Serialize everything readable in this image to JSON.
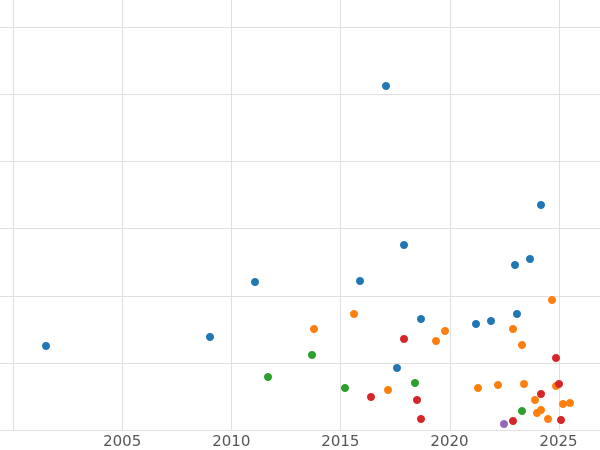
{
  "chart_data": {
    "type": "scatter",
    "title": "",
    "xlabel": "",
    "ylabel": "",
    "xlim": [
      1999.4,
      2026.9
    ],
    "ylim": [
      0,
      6.4
    ],
    "grid": true,
    "background_color": "#ffffff",
    "gridline_color": "#e0e0e0",
    "tick_label_color": "#555555",
    "legend": "none",
    "marker_size_px": 8,
    "x_gridlines": [
      2000,
      2005,
      2010,
      2015,
      2020,
      2025
    ],
    "y_gridlines": [
      0,
      1,
      2,
      3,
      4,
      5,
      6
    ],
    "x_ticks": [
      {
        "year": 2005,
        "label": "2005"
      },
      {
        "year": 2010,
        "label": "2010"
      },
      {
        "year": 2015,
        "label": "2015"
      },
      {
        "year": 2020,
        "label": "2020"
      },
      {
        "year": 2025,
        "label": "2025"
      }
    ],
    "series": [
      {
        "name": "series-blue",
        "color": "#1f77b4",
        "points": [
          [
            2001.5,
            1.25
          ],
          [
            2009.0,
            1.38
          ],
          [
            2011.1,
            2.2
          ],
          [
            2015.9,
            2.22
          ],
          [
            2017.1,
            5.12
          ],
          [
            2017.6,
            0.92
          ],
          [
            2017.9,
            2.75
          ],
          [
            2018.7,
            1.66
          ],
          [
            2021.2,
            1.58
          ],
          [
            2021.9,
            1.62
          ],
          [
            2023.0,
            2.45
          ],
          [
            2023.1,
            1.73
          ],
          [
            2023.7,
            2.55
          ],
          [
            2024.2,
            3.35
          ]
        ]
      },
      {
        "name": "series-orange",
        "color": "#ff7f0e",
        "points": [
          [
            2013.8,
            1.51
          ],
          [
            2015.6,
            1.73
          ],
          [
            2017.2,
            0.59
          ],
          [
            2019.4,
            1.33
          ],
          [
            2019.8,
            1.47
          ],
          [
            2021.3,
            0.62
          ],
          [
            2022.2,
            0.67
          ],
          [
            2022.9,
            1.51
          ],
          [
            2023.3,
            1.26
          ],
          [
            2023.4,
            0.68
          ],
          [
            2023.9,
            0.44
          ],
          [
            2024.0,
            0.25
          ],
          [
            2024.2,
            0.3
          ],
          [
            2024.5,
            0.16
          ],
          [
            2024.7,
            1.93
          ],
          [
            2024.9,
            0.65
          ],
          [
            2025.2,
            0.39
          ],
          [
            2025.5,
            0.4
          ]
        ]
      },
      {
        "name": "series-green",
        "color": "#2ca02c",
        "points": [
          [
            2011.7,
            0.79
          ],
          [
            2013.7,
            1.11
          ],
          [
            2015.2,
            0.62
          ],
          [
            2018.4,
            0.7
          ],
          [
            2023.3,
            0.28
          ]
        ]
      },
      {
        "name": "series-red",
        "color": "#d62728",
        "points": [
          [
            2016.4,
            0.49
          ],
          [
            2017.9,
            1.35
          ],
          [
            2018.5,
            0.44
          ],
          [
            2018.7,
            0.16
          ],
          [
            2022.9,
            0.13
          ],
          [
            2024.2,
            0.53
          ],
          [
            2024.9,
            1.07
          ],
          [
            2025.0,
            0.68
          ],
          [
            2025.1,
            0.15
          ]
        ]
      },
      {
        "name": "series-purple",
        "color": "#9467bd",
        "points": [
          [
            2022.5,
            0.09
          ]
        ]
      }
    ]
  }
}
